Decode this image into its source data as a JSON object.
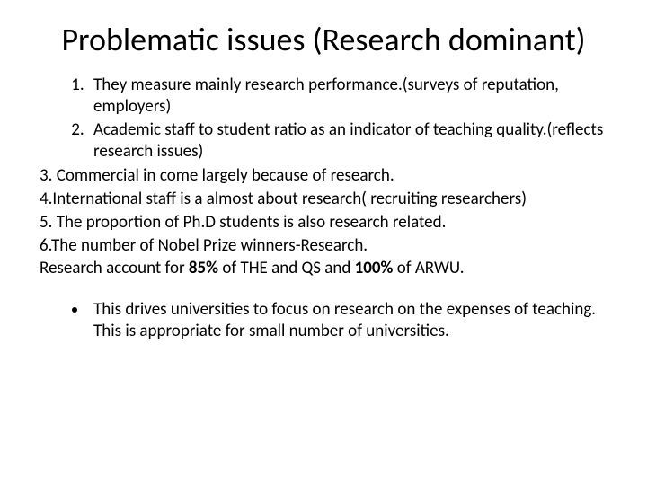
{
  "title": "Problematic issues (Research dominant)",
  "numbered": [
    "They measure mainly research performance.(surveys of reputation, employers)",
    "Academic staff to student ratio as an indicator of teaching quality.(reflects research issues)"
  ],
  "plain": [
    "3. Commercial in come largely because of research.",
    "4.International staff is a almost about research( recruiting researchers)",
    "5. The proportion of Ph.D students is also research related.",
    "6.The number of Nobel Prize winners-Research."
  ],
  "summary_prefix": "Research account for ",
  "summary_bold1": "85%",
  "summary_mid": " of THE and QS and ",
  "summary_bold2": "100%",
  "summary_suffix": " of ARWU.",
  "bullet": "This drives universities to focus on research on the expenses of teaching. This is appropriate for small number of universities."
}
